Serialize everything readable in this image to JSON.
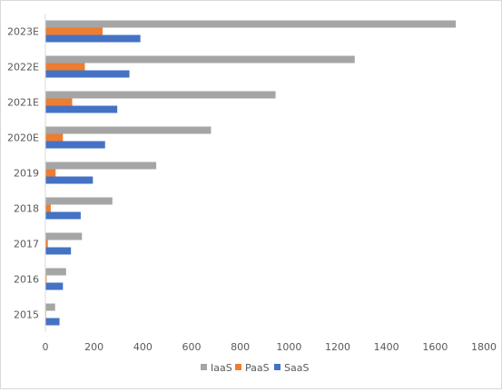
{
  "chart_data": {
    "type": "bar",
    "orientation": "horizontal",
    "categories": [
      "2015",
      "2016",
      "2017",
      "2018",
      "2019",
      "2020E",
      "2021E",
      "2022E",
      "2023E"
    ],
    "series": [
      {
        "name": "IaaS",
        "color": "#a5a5a5",
        "values": [
          40,
          85,
          150,
          275,
          455,
          680,
          945,
          1270,
          1685
        ]
      },
      {
        "name": "PaaS",
        "color": "#ed7d31",
        "values": [
          3,
          5,
          10,
          22,
          42,
          72,
          110,
          162,
          235
        ]
      },
      {
        "name": "SaaS",
        "color": "#4472c4",
        "values": [
          58,
          72,
          105,
          145,
          195,
          245,
          295,
          345,
          390
        ]
      }
    ],
    "xlim": [
      0,
      1800
    ],
    "xticks": [
      0,
      200,
      400,
      600,
      800,
      1000,
      1200,
      1400,
      1600,
      1800
    ],
    "grid": false,
    "legend_position": "bottom",
    "title": "",
    "xlabel": "",
    "ylabel": ""
  }
}
